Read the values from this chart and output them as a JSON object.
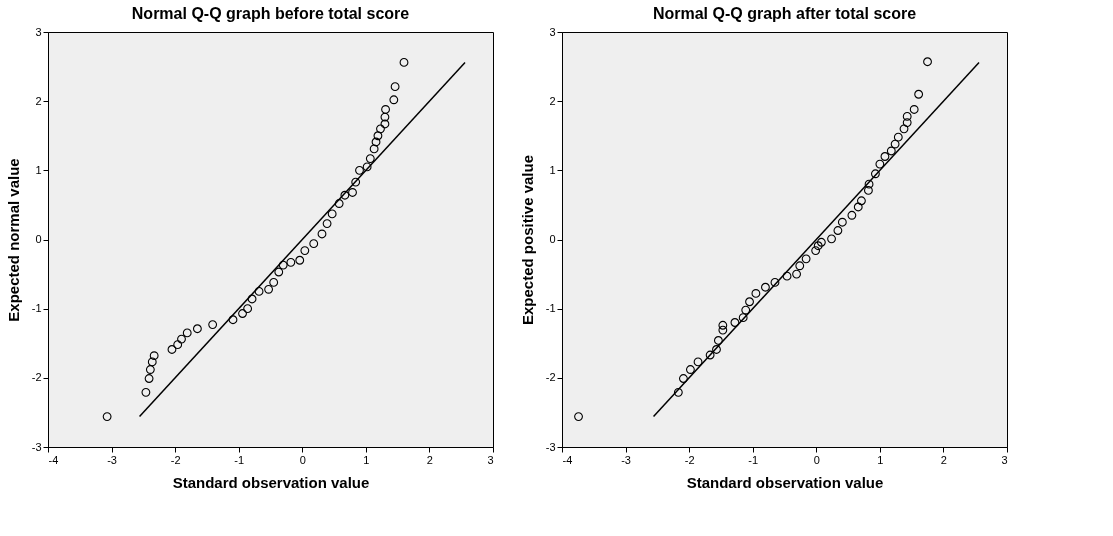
{
  "chart_data": [
    {
      "type": "scatter",
      "title": "Normal Q-Q graph before total score",
      "xlabel": "Standard observation value",
      "ylabel": "Expected normal value",
      "xlim": [
        -4,
        3
      ],
      "ylim": [
        -3,
        3
      ],
      "xticks": [
        -4,
        -3,
        -2,
        -1,
        0,
        1,
        2,
        3
      ],
      "yticks": [
        -3,
        -2,
        -1,
        0,
        1,
        2,
        3
      ],
      "grid": false,
      "series": [
        {
          "type": "scatter",
          "marker": "circle",
          "color": "#000000",
          "x": [
            -3.07,
            -2.46,
            -2.41,
            -2.39,
            -2.36,
            -2.33,
            -2.05,
            -1.96,
            -1.9,
            -1.81,
            -1.65,
            -1.41,
            -1.09,
            -0.94,
            -0.86,
            -0.79,
            -0.68,
            -0.53,
            -0.45,
            -0.37,
            -0.3,
            -0.18,
            -0.04,
            0.04,
            0.18,
            0.31,
            0.39,
            0.47,
            0.58,
            0.67,
            0.79,
            0.84,
            0.9,
            1.02,
            1.07,
            1.13,
            1.16,
            1.19,
            1.23,
            1.3,
            1.3,
            1.31,
            1.44,
            1.46,
            1.6
          ],
          "values": [
            -2.56,
            -2.21,
            -2.01,
            -1.88,
            -1.77,
            -1.68,
            -1.59,
            -1.52,
            -1.44,
            -1.35,
            -1.29,
            -1.23,
            -1.16,
            -1.07,
            -1.0,
            -0.86,
            -0.75,
            -0.72,
            -0.62,
            -0.47,
            -0.37,
            -0.33,
            -0.3,
            -0.16,
            -0.06,
            0.08,
            0.23,
            0.37,
            0.52,
            0.64,
            0.68,
            0.83,
            1.0,
            1.05,
            1.17,
            1.31,
            1.41,
            1.5,
            1.6,
            1.67,
            1.77,
            1.88,
            2.02,
            2.21,
            2.56
          ]
        },
        {
          "type": "line",
          "line_style": "solid",
          "color": "#000000",
          "x": [
            -2.56,
            2.56
          ],
          "values": [
            -2.56,
            2.56
          ]
        }
      ]
    },
    {
      "type": "scatter",
      "title": "Normal Q-Q graph after total score",
      "xlabel": "Standard observation value",
      "ylabel": "Expected positive value",
      "xlim": [
        -4,
        3
      ],
      "ylim": [
        -3,
        3
      ],
      "xticks": [
        -4,
        -3,
        -2,
        -1,
        0,
        1,
        2,
        3
      ],
      "yticks": [
        -3,
        -2,
        -1,
        0,
        1,
        2,
        3
      ],
      "grid": false,
      "series": [
        {
          "type": "scatter",
          "marker": "circle",
          "color": "#000000",
          "x": [
            -3.74,
            -2.17,
            -2.09,
            -1.98,
            -1.86,
            -1.67,
            -1.57,
            -1.54,
            -1.47,
            -1.47,
            -1.28,
            -1.15,
            -1.11,
            -1.05,
            -0.95,
            -0.8,
            -0.65,
            -0.46,
            -0.31,
            -0.26,
            -0.16,
            -0.01,
            0.03,
            0.08,
            0.24,
            0.34,
            0.41,
            0.56,
            0.66,
            0.71,
            0.82,
            0.83,
            0.93,
            1.0,
            1.08,
            1.18,
            1.24,
            1.29,
            1.38,
            1.43,
            1.43,
            1.54,
            1.61,
            1.75
          ],
          "values": [
            -2.56,
            -2.21,
            -2.01,
            -1.88,
            -1.77,
            -1.67,
            -1.59,
            -1.46,
            -1.31,
            -1.24,
            -1.2,
            -1.13,
            -1.02,
            -0.9,
            -0.78,
            -0.69,
            -0.62,
            -0.53,
            -0.5,
            -0.38,
            -0.28,
            -0.16,
            -0.09,
            -0.04,
            0.01,
            0.13,
            0.25,
            0.35,
            0.47,
            0.56,
            0.71,
            0.8,
            0.95,
            1.09,
            1.2,
            1.28,
            1.38,
            1.48,
            1.6,
            1.69,
            1.78,
            1.88,
            2.1,
            2.57
          ]
        },
        {
          "type": "line",
          "line_style": "solid",
          "color": "#000000",
          "x": [
            -2.56,
            2.56
          ],
          "values": [
            -2.56,
            2.56
          ]
        }
      ]
    }
  ]
}
